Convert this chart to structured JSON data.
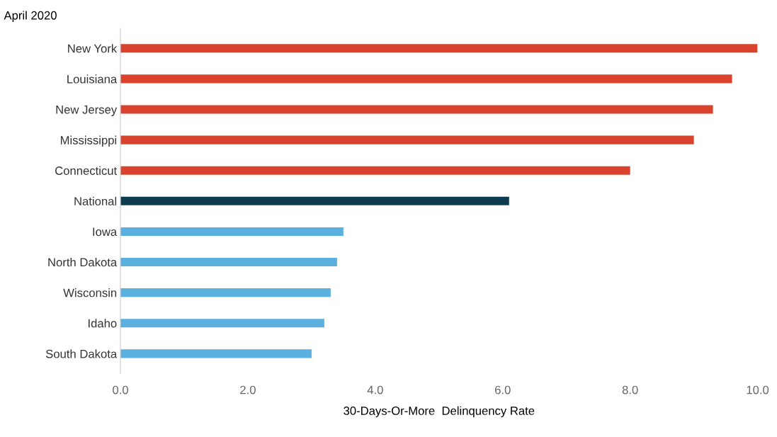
{
  "chart_data": {
    "type": "bar",
    "orientation": "horizontal",
    "title": "April 2020",
    "xlabel": "30-Days-Or-More  Delinquency Rate",
    "categories": [
      "New York",
      "Louisiana",
      "New Jersey",
      "Mississippi",
      "Connecticut",
      "National",
      "Iowa",
      "North Dakota",
      "Wisconsin",
      "Idaho",
      "South Dakota"
    ],
    "values": [
      10.0,
      9.6,
      9.3,
      9.0,
      8.0,
      6.1,
      3.5,
      3.4,
      3.3,
      3.2,
      3.0
    ],
    "colors": [
      "#d9432d",
      "#d9432d",
      "#d9432d",
      "#d9432d",
      "#d9432d",
      "#0d3b50",
      "#5bb0e0",
      "#5bb0e0",
      "#5bb0e0",
      "#5bb0e0",
      "#5bb0e0"
    ],
    "xlim": [
      0,
      10.0
    ],
    "xticks": [
      {
        "value": 0,
        "label": "0.0"
      },
      {
        "value": 2,
        "label": "2.0"
      },
      {
        "value": 4,
        "label": "4.0"
      },
      {
        "value": 6,
        "label": "6.0"
      },
      {
        "value": 8,
        "label": "8.0"
      },
      {
        "value": 10,
        "label": "10.0"
      }
    ],
    "grid": false,
    "legend": false
  }
}
